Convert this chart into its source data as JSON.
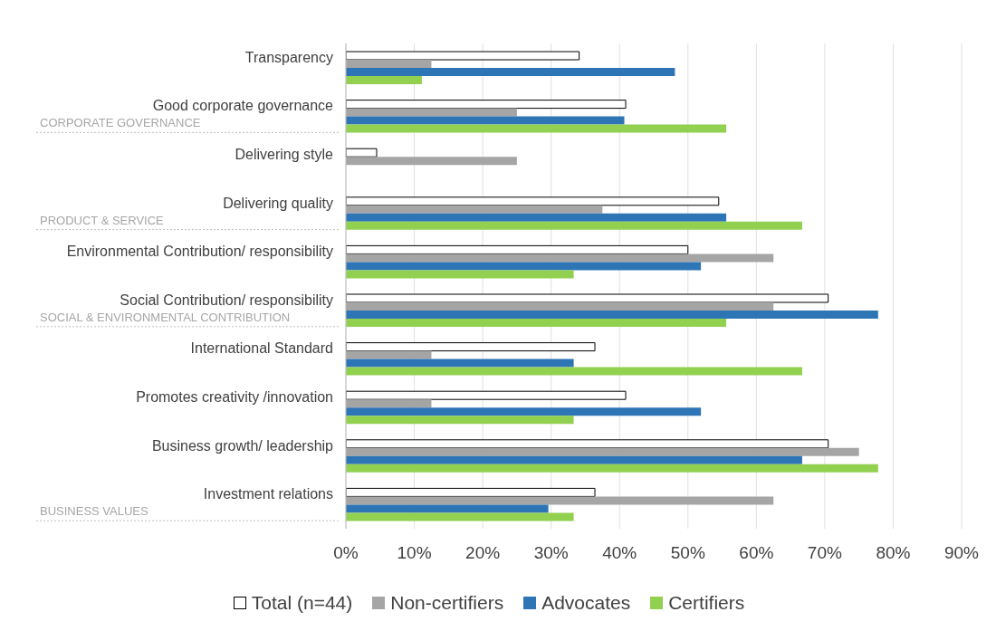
{
  "chart_data": {
    "type": "bar",
    "orientation": "horizontal",
    "categories": [
      "Transparency",
      "Good corporate governance",
      "Delivering style",
      "Delivering quality",
      "Environmental Contribution/ responsibility",
      "Social Contribution/ responsibility",
      "International Standard",
      "Promotes creativity /innovation",
      "Business growth/ leadership",
      "Investment relations"
    ],
    "series": [
      {
        "name": "Total (n=44)",
        "color": "#ffffff",
        "values": [
          34.1,
          40.9,
          4.5,
          54.5,
          50,
          70.5,
          36.4,
          40.9,
          70.5,
          36.4
        ]
      },
      {
        "name": "Non-certifiers",
        "color": "#a5a5a5",
        "values": [
          12.5,
          25,
          25,
          37.5,
          62.5,
          62.5,
          12.5,
          12.5,
          75,
          62.5
        ]
      },
      {
        "name": "Advocates",
        "color": "#2e75b6",
        "values": [
          48.1,
          40.7,
          null,
          55.6,
          51.9,
          77.8,
          33.3,
          51.9,
          66.7,
          29.6
        ]
      },
      {
        "name": "Certifiers",
        "color": "#92d050",
        "values": [
          11.1,
          55.6,
          null,
          66.7,
          33.3,
          55.6,
          66.7,
          33.3,
          77.8,
          33.3
        ]
      }
    ],
    "xlim": [
      0,
      90
    ],
    "xticks": [
      {
        "value": 0,
        "label": "0%"
      },
      {
        "value": 10,
        "label": "10%"
      },
      {
        "value": 20,
        "label": "20%"
      },
      {
        "value": 30,
        "label": "30%"
      },
      {
        "value": 40,
        "label": "40%"
      },
      {
        "value": 50,
        "label": "50%"
      },
      {
        "value": 60,
        "label": "60%"
      },
      {
        "value": 70,
        "label": "70%"
      },
      {
        "value": 80,
        "label": "80%"
      },
      {
        "value": 90,
        "label": "90%"
      }
    ],
    "grid": "x",
    "legend": "bottom",
    "annotations": [
      "CORPORATE GOVERNANCE",
      "PRODUCT & SERVICE",
      "SOCIAL & ENVIRONMENTAL CONTRIBUTION",
      "BUSINESS VALUES"
    ]
  }
}
